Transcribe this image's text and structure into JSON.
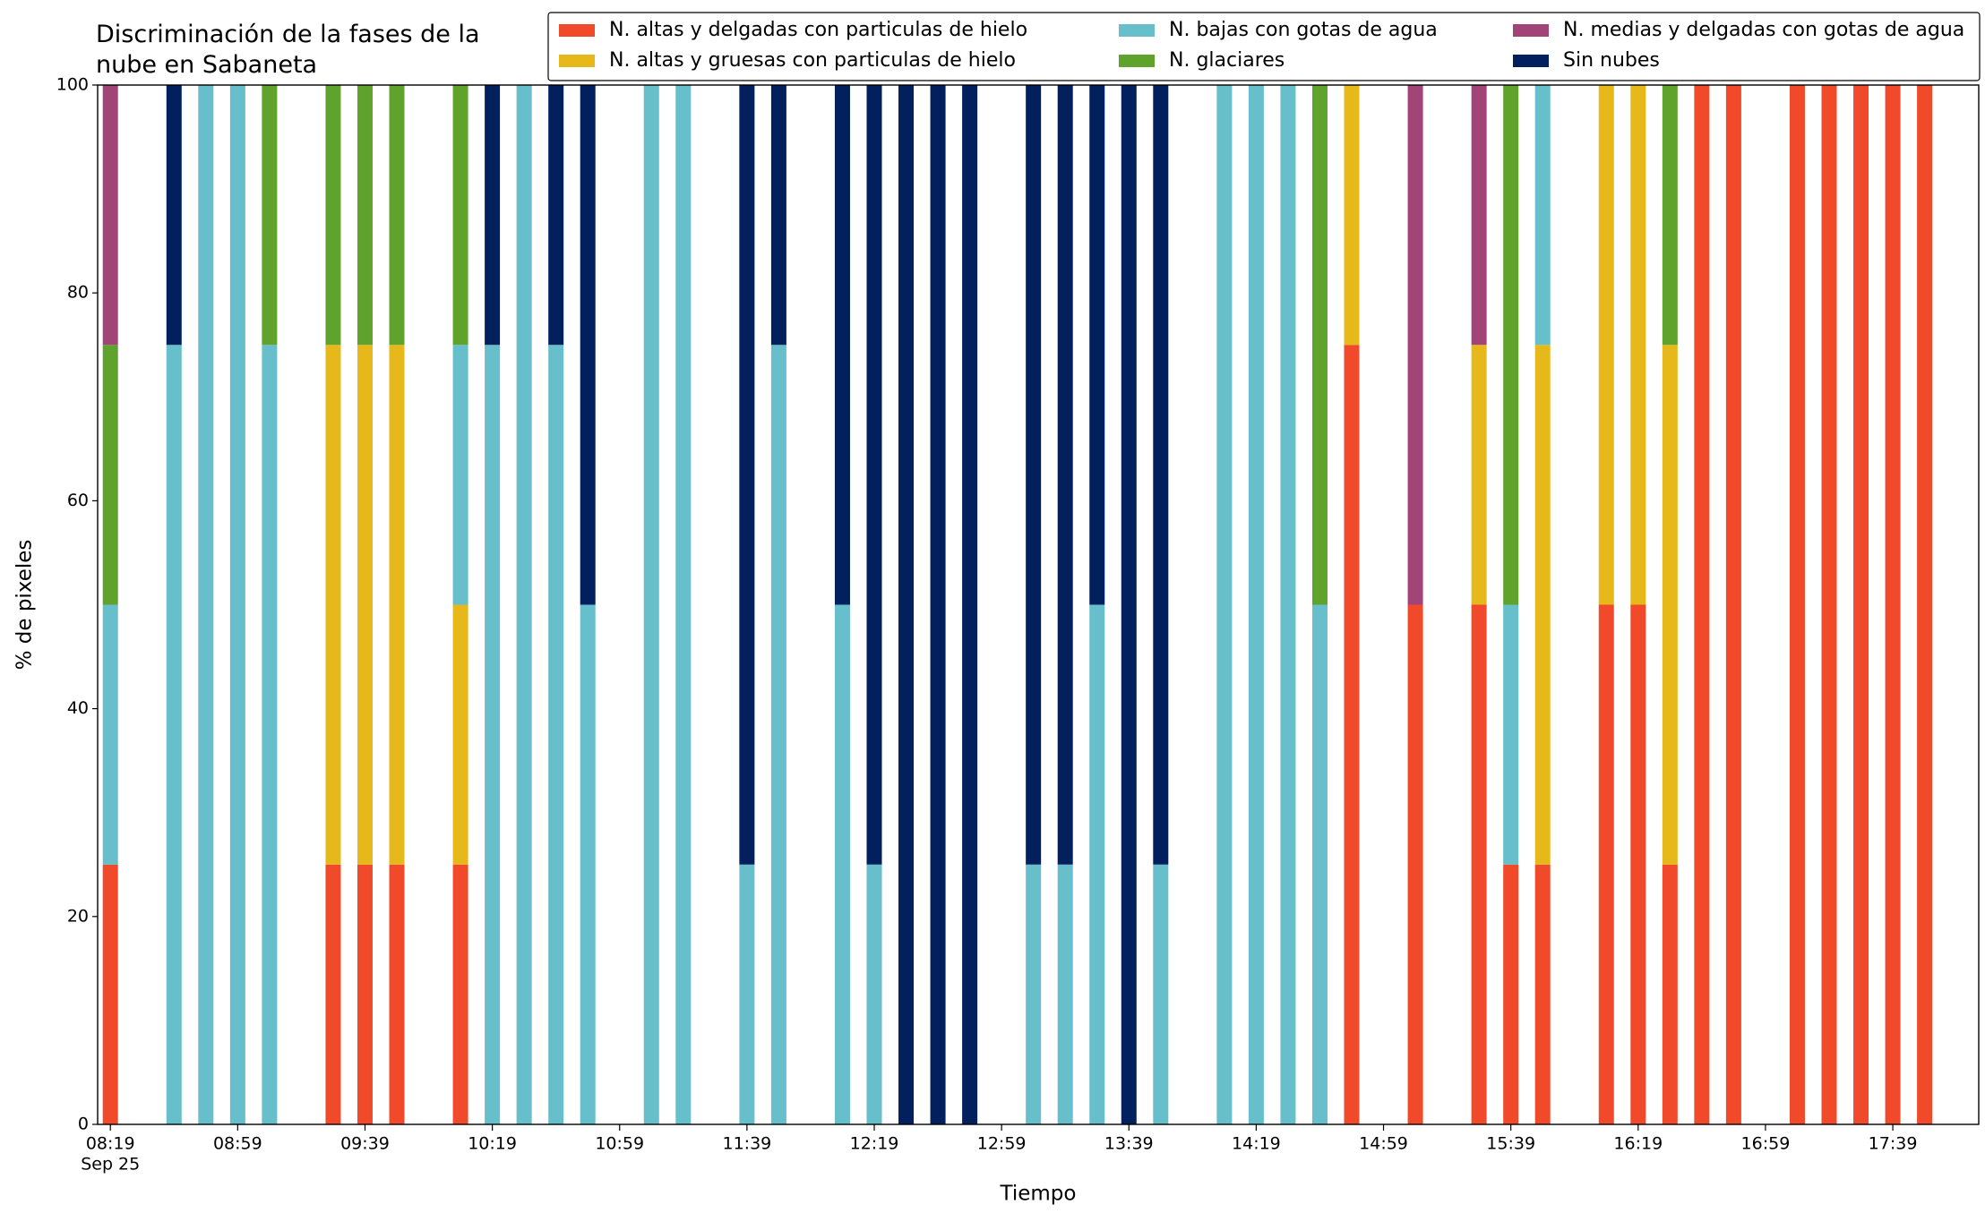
{
  "chart_data": {
    "type": "stacked_bar",
    "title": "Discriminación de la fases de la\nnube en Sabaneta",
    "xlabel": "Tiempo",
    "ylabel": "% de pixeles",
    "x": [
      "08:19",
      "08:39",
      "08:49",
      "08:59",
      "09:09",
      "09:29",
      "09:39",
      "09:49",
      "10:09",
      "10:19",
      "10:29",
      "10:39",
      "10:49",
      "11:09",
      "11:19",
      "11:39",
      "11:49",
      "12:09",
      "12:19",
      "12:29",
      "12:39",
      "12:49",
      "13:09",
      "13:19",
      "13:29",
      "13:39",
      "13:49",
      "14:09",
      "14:19",
      "14:29",
      "14:39",
      "14:49",
      "15:09",
      "15:29",
      "15:39",
      "15:49",
      "16:09",
      "16:19",
      "16:29",
      "16:39",
      "16:49",
      "17:09",
      "17:19",
      "17:29",
      "17:39",
      "17:49"
    ],
    "series": [
      {
        "name": "N. altas y delgadas con particulas de hielo",
        "color": "#f04a2b",
        "values": [
          25,
          0,
          0,
          0,
          0,
          25,
          25,
          25,
          25,
          0,
          0,
          0,
          0,
          0,
          0,
          0,
          0,
          0,
          0,
          0,
          0,
          0,
          0,
          0,
          0,
          0,
          0,
          0,
          0,
          0,
          0,
          75,
          50,
          50,
          25,
          25,
          50,
          50,
          25,
          100,
          100,
          100,
          100,
          100,
          100,
          100
        ]
      },
      {
        "name": "N. altas y gruesas con particulas de hielo",
        "color": "#e6b819",
        "values": [
          0,
          0,
          0,
          0,
          0,
          50,
          50,
          50,
          25,
          0,
          0,
          0,
          0,
          0,
          0,
          0,
          0,
          0,
          0,
          0,
          0,
          0,
          0,
          0,
          0,
          0,
          0,
          0,
          0,
          0,
          0,
          25,
          0,
          25,
          0,
          50,
          50,
          50,
          50,
          0,
          0,
          0,
          0,
          0,
          0,
          0
        ]
      },
      {
        "name": "N. bajas con gotas de agua",
        "color": "#66bfca",
        "values": [
          25,
          75,
          100,
          100,
          75,
          0,
          0,
          0,
          25,
          75,
          100,
          75,
          50,
          100,
          100,
          25,
          75,
          50,
          25,
          0,
          0,
          0,
          25,
          25,
          50,
          0,
          25,
          100,
          100,
          100,
          50,
          0,
          0,
          0,
          25,
          25,
          0,
          0,
          0,
          0,
          0,
          0,
          0,
          0,
          0,
          0
        ]
      },
      {
        "name": "N. glaciares",
        "color": "#5fa22c",
        "values": [
          25,
          0,
          0,
          0,
          25,
          25,
          25,
          25,
          25,
          0,
          0,
          0,
          0,
          0,
          0,
          0,
          0,
          0,
          0,
          0,
          0,
          0,
          0,
          0,
          0,
          0,
          0,
          0,
          0,
          0,
          50,
          0,
          0,
          0,
          50,
          0,
          0,
          0,
          25,
          0,
          0,
          0,
          0,
          0,
          0,
          0
        ]
      },
      {
        "name": "N. medias y delgadas con gotas de agua",
        "color": "#a34478",
        "values": [
          25,
          0,
          0,
          0,
          0,
          0,
          0,
          0,
          0,
          0,
          0,
          0,
          0,
          0,
          0,
          0,
          0,
          0,
          0,
          0,
          0,
          0,
          0,
          0,
          0,
          0,
          0,
          0,
          0,
          0,
          0,
          0,
          50,
          25,
          0,
          0,
          0,
          0,
          0,
          0,
          0,
          0,
          0,
          0,
          0,
          0
        ]
      },
      {
        "name": "Sin nubes",
        "color": "#021f5e",
        "values": [
          0,
          25,
          0,
          0,
          0,
          0,
          0,
          0,
          0,
          25,
          0,
          25,
          50,
          0,
          0,
          75,
          25,
          50,
          75,
          100,
          100,
          100,
          75,
          75,
          50,
          100,
          75,
          0,
          0,
          0,
          0,
          0,
          0,
          0,
          0,
          0,
          0,
          0,
          0,
          0,
          0,
          0,
          0,
          0,
          0,
          0
        ]
      }
    ],
    "xlim": [
      "08:15",
      "18:06"
    ],
    "xticks": [
      "08:19",
      "08:59",
      "09:39",
      "10:19",
      "10:59",
      "11:39",
      "12:19",
      "12:59",
      "13:39",
      "14:19",
      "14:59",
      "15:39",
      "16:19",
      "16:59",
      "17:39"
    ],
    "xtick_date": "Sep 25",
    "ylim": [
      0,
      100
    ],
    "yticks": [
      0,
      20,
      40,
      60,
      80,
      100
    ],
    "legend": "upper right",
    "legend_columns": 3
  }
}
